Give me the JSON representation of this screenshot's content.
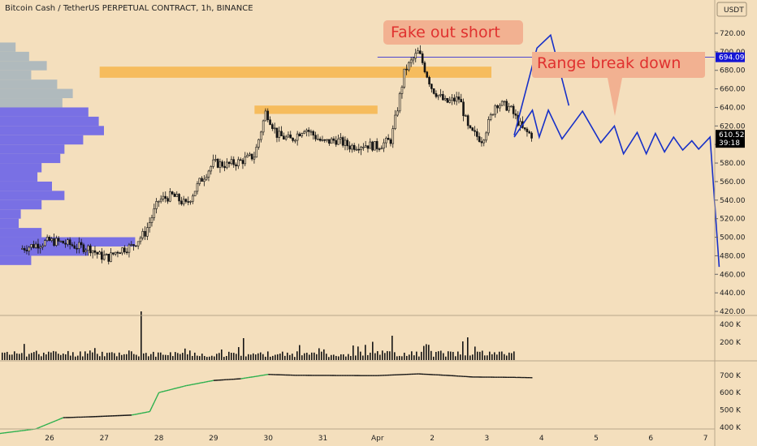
{
  "header": {
    "title": "Bitcoin Cash / TetherUS PERPETUAL CONTRACT, 1h, BINANCE"
  },
  "currency_button": {
    "label": "USDT"
  },
  "chart_data": [
    {
      "type": "candlestick",
      "title": "Bitcoin Cash / TetherUS PERPETUAL CONTRACT, 1h, BINANCE",
      "ylim": [
        410,
        735
      ],
      "y_ticks": [
        "720.00",
        "700.00",
        "680.00",
        "660.00",
        "640.00",
        "620.00",
        "600.00",
        "580.00",
        "560.00",
        "540.00",
        "520.00",
        "500.00",
        "480.00",
        "460.00",
        "440.00",
        "420.00"
      ],
      "x_ticks": [
        "26",
        "27",
        "28",
        "29",
        "30",
        "31",
        "Apr",
        "2",
        "3",
        "4",
        "5",
        "6",
        "7"
      ],
      "price_labels": [
        {
          "value": "694.09",
          "price": 694.09,
          "color": "#1414d4"
        },
        {
          "value": "610.52",
          "sub": "39:18",
          "price": 610.52,
          "color": "#000000"
        }
      ],
      "price_path": [
        {
          "date": "Mar 25 12:00",
          "price": 488
        },
        {
          "date": "Mar 25 18:00",
          "price": 492
        },
        {
          "date": "Mar 26 00:00",
          "price": 496
        },
        {
          "date": "Mar 26 06:00",
          "price": 494
        },
        {
          "date": "Mar 26 12:00",
          "price": 490
        },
        {
          "date": "Mar 26 18:00",
          "price": 488
        },
        {
          "date": "Mar 26 22:00",
          "price": 480
        },
        {
          "date": "Mar 27 02:00",
          "price": 478
        },
        {
          "date": "Mar 27 06:00",
          "price": 486
        },
        {
          "date": "Mar 27 12:00",
          "price": 490
        },
        {
          "date": "Mar 27 18:00",
          "price": 505
        },
        {
          "date": "Mar 28 00:00",
          "price": 540
        },
        {
          "date": "Mar 28 06:00",
          "price": 545
        },
        {
          "date": "Mar 28 12:00",
          "price": 535
        },
        {
          "date": "Mar 28 18:00",
          "price": 560
        },
        {
          "date": "Mar 29 00:00",
          "price": 580
        },
        {
          "date": "Mar 29 06:00",
          "price": 578
        },
        {
          "date": "Mar 29 12:00",
          "price": 582
        },
        {
          "date": "Mar 29 18:00",
          "price": 588
        },
        {
          "date": "Mar 29 23:00",
          "price": 636
        },
        {
          "date": "Mar 30 04:00",
          "price": 610
        },
        {
          "date": "Mar 30 10:00",
          "price": 605
        },
        {
          "date": "Mar 30 16:00",
          "price": 618
        },
        {
          "date": "Mar 31 00:00",
          "price": 602
        },
        {
          "date": "Mar 31 06:00",
          "price": 605
        },
        {
          "date": "Mar 31 12:00",
          "price": 598
        },
        {
          "date": "Mar 31 18:00",
          "price": 600
        },
        {
          "date": "Apr 1 00:00",
          "price": 598
        },
        {
          "date": "Apr 1 06:00",
          "price": 605
        },
        {
          "date": "Apr 1 12:00",
          "price": 680
        },
        {
          "date": "Apr 1 18:00",
          "price": 700
        },
        {
          "date": "Apr 2 00:00",
          "price": 660
        },
        {
          "date": "Apr 2 06:00",
          "price": 645
        },
        {
          "date": "Apr 2 12:00",
          "price": 650
        },
        {
          "date": "Apr 2 16:00",
          "price": 615
        },
        {
          "date": "Apr 2 22:00",
          "price": 605
        },
        {
          "date": "Apr 3 04:00",
          "price": 645
        },
        {
          "date": "Apr 3 10:00",
          "price": 640
        },
        {
          "date": "Apr 3 16:00",
          "price": 615
        },
        {
          "date": "Apr 3 20:00",
          "price": 610
        }
      ],
      "zones": [
        {
          "from": "Mar 26 22:00",
          "to": "Apr 3 02:00",
          "low": 672,
          "high": 684,
          "color": "#f6b64c"
        },
        {
          "from": "Mar 29 18:00",
          "to": "Apr 1 00:00",
          "low": 633,
          "high": 642,
          "color": "#f6b64c"
        }
      ],
      "horizontal_line": {
        "price": 694.09,
        "from": "Apr 1 00:00",
        "color": "#1414d4"
      },
      "scenario_fake_out": [
        {
          "date": "Apr 3 12:00",
          "price": 610
        },
        {
          "date": "Apr 3 22:00",
          "price": 704
        },
        {
          "date": "Apr 4 04:00",
          "price": 718
        },
        {
          "date": "Apr 4 12:00",
          "price": 642
        }
      ],
      "scenario_range": [
        {
          "date": "Apr 3 12:00",
          "price": 608
        },
        {
          "date": "Apr 3 20:00",
          "price": 637
        },
        {
          "date": "Apr 3 23:00",
          "price": 608
        },
        {
          "date": "Apr 4 03:00",
          "price": 637
        },
        {
          "date": "Apr 4 09:00",
          "price": 606
        },
        {
          "date": "Apr 4 18:00",
          "price": 636
        },
        {
          "date": "Apr 5 02:00",
          "price": 602
        },
        {
          "date": "Apr 5 08:00",
          "price": 620
        },
        {
          "date": "Apr 5 12:00",
          "price": 590
        },
        {
          "date": "Apr 5 18:00",
          "price": 613
        },
        {
          "date": "Apr 5 22:00",
          "price": 590
        },
        {
          "date": "Apr 6 02:00",
          "price": 612
        },
        {
          "date": "Apr 6 06:00",
          "price": 592
        },
        {
          "date": "Apr 6 10:00",
          "price": 608
        },
        {
          "date": "Apr 6 14:00",
          "price": 594
        },
        {
          "date": "Apr 6 18:00",
          "price": 604
        },
        {
          "date": "Apr 6 21:00",
          "price": 595
        },
        {
          "date": "Apr 7 02:00",
          "price": 608
        },
        {
          "date": "Apr 7 06:00",
          "price": 468
        }
      ],
      "volume_profile": [
        {
          "price": 705,
          "volume": 0.15
        },
        {
          "price": 695,
          "volume": 0.28
        },
        {
          "price": 685,
          "volume": 0.45
        },
        {
          "price": 675,
          "volume": 0.3
        },
        {
          "price": 665,
          "volume": 0.55
        },
        {
          "price": 655,
          "volume": 0.7
        },
        {
          "price": 645,
          "volume": 0.6
        },
        {
          "price": 635,
          "volume": 0.85
        },
        {
          "price": 625,
          "volume": 0.95
        },
        {
          "price": 615,
          "volume": 1.0
        },
        {
          "price": 605,
          "volume": 0.8
        },
        {
          "price": 595,
          "volume": 0.62
        },
        {
          "price": 585,
          "volume": 0.58
        },
        {
          "price": 575,
          "volume": 0.4
        },
        {
          "price": 565,
          "volume": 0.36
        },
        {
          "price": 555,
          "volume": 0.5
        },
        {
          "price": 545,
          "volume": 0.62
        },
        {
          "price": 535,
          "volume": 0.4
        },
        {
          "price": 525,
          "volume": 0.2
        },
        {
          "price": 515,
          "volume": 0.18
        },
        {
          "price": 505,
          "volume": 0.4
        },
        {
          "price": 495,
          "volume": 1.3
        },
        {
          "price": 485,
          "volume": 0.85
        },
        {
          "price": 475,
          "volume": 0.3
        }
      ],
      "annotations": [
        {
          "text": "Fake out short",
          "anchor": "Apr 3 12:00",
          "price": 730
        },
        {
          "text": "Range break down",
          "anchor": "Apr 4 12:00",
          "price": 690
        }
      ]
    },
    {
      "type": "bar",
      "name": "volume",
      "ylim": [
        0,
        450000
      ],
      "y_ticks": [
        "400 K",
        "200 K"
      ]
    },
    {
      "type": "line",
      "name": "cumulative indicator",
      "ylim": [
        320,
        760
      ],
      "y_ticks": [
        "700 K",
        "600 K",
        "500 K",
        "400 K"
      ],
      "points": [
        {
          "date": "Mar 25 00:00",
          "value": 360
        },
        {
          "date": "Mar 25 18:00",
          "value": 390
        },
        {
          "date": "Mar 26 06:00",
          "value": 455
        },
        {
          "date": "Mar 26 18:00",
          "value": 460
        },
        {
          "date": "Mar 27 12:00",
          "value": 470
        },
        {
          "date": "Mar 27 20:00",
          "value": 490
        },
        {
          "date": "Mar 28 00:00",
          "value": 600
        },
        {
          "date": "Mar 28 12:00",
          "value": 640
        },
        {
          "date": "Mar 29 00:00",
          "value": 670
        },
        {
          "date": "Mar 29 12:00",
          "value": 680
        },
        {
          "date": "Mar 30 00:00",
          "value": 705
        },
        {
          "date": "Mar 30 12:00",
          "value": 700
        },
        {
          "date": "Apr 1 00:00",
          "value": 698
        },
        {
          "date": "Apr 1 18:00",
          "value": 708
        },
        {
          "date": "Apr 2 06:00",
          "value": 700
        },
        {
          "date": "Apr 2 18:00",
          "value": 690
        },
        {
          "date": "Apr 3 12:00",
          "value": 688
        },
        {
          "date": "Apr 3 20:00",
          "value": 686
        }
      ]
    }
  ],
  "colors": {
    "background": "#f4dfbd",
    "candle": "#141414",
    "scenario": "#1730c8",
    "profile_blue": "#6b64e8",
    "profile_gray": "#a9b6bd",
    "zone": "#f6b64c",
    "note_text": "#e0312f",
    "note_bg": "#f2b191",
    "up_green": "#2bb04d",
    "down_red": "#e03a3a"
  }
}
